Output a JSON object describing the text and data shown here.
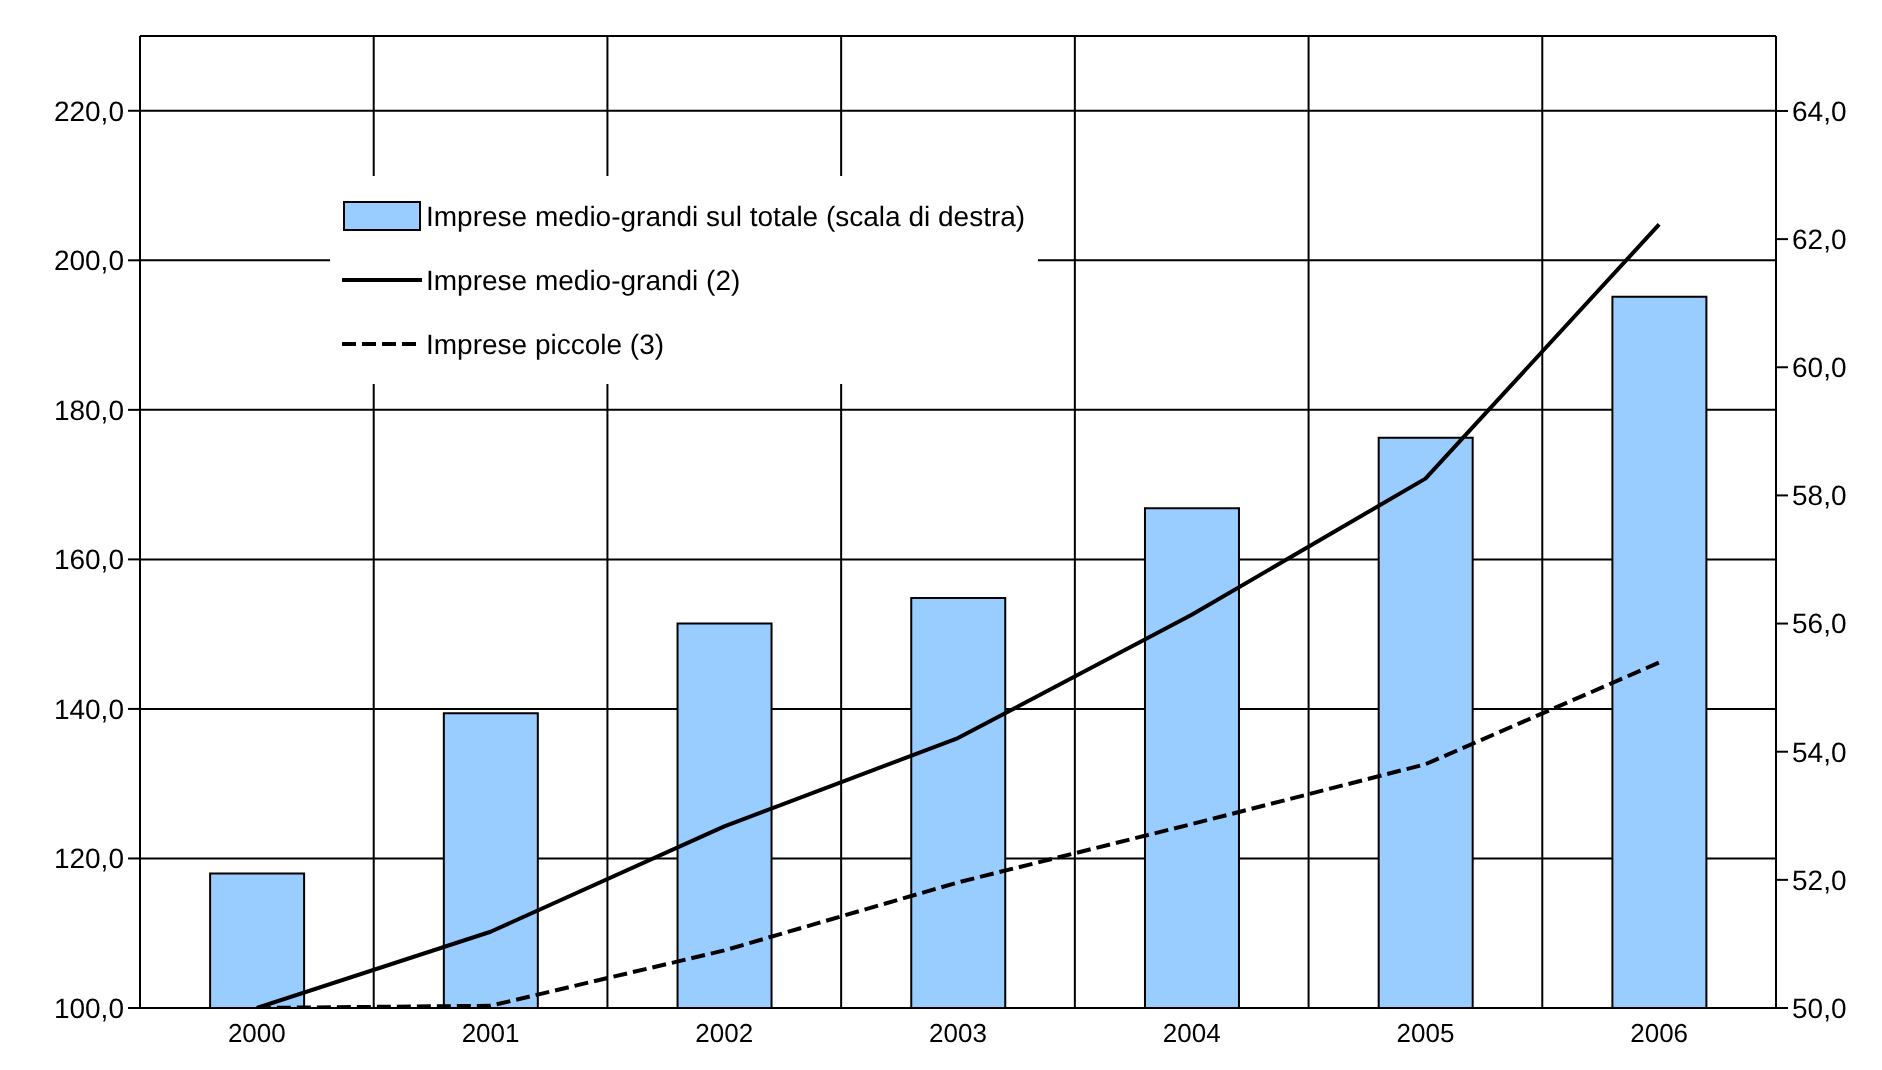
{
  "chart_data": {
    "type": "line",
    "categories": [
      "2000",
      "2001",
      "2002",
      "2003",
      "2004",
      "2005",
      "2006"
    ],
    "series": [
      {
        "name": "Imprese medio-grandi sul totale (scala di destra)",
        "type": "bar",
        "axis": "y2",
        "color": "#99ccff",
        "values": [
          52.1,
          54.6,
          56.0,
          56.4,
          57.8,
          58.9,
          61.1
        ]
      },
      {
        "name": "Imprese medio-grandi (2)",
        "color": "#000000",
        "line_style": "solid",
        "values": [
          100.0,
          110.2,
          124.3,
          136.1,
          152.6,
          170.8,
          204.8
        ]
      },
      {
        "name": "Imprese piccole (3)",
        "color": "#000000",
        "line_style": "dashed",
        "values": [
          100.0,
          100.3,
          107.7,
          116.8,
          124.6,
          132.6,
          146.2
        ]
      }
    ],
    "ylim": [
      100,
      230
    ],
    "yticks": [
      {
        "value": 100,
        "label": "100,0"
      },
      {
        "value": 120,
        "label": "120,0"
      },
      {
        "value": 140,
        "label": "140,0"
      },
      {
        "value": 160,
        "label": "160,0"
      },
      {
        "value": 180,
        "label": "180,0"
      },
      {
        "value": 200,
        "label": "200,0"
      },
      {
        "value": 220,
        "label": "220,0"
      }
    ],
    "y2lim": [
      50,
      65.17
    ],
    "y2ticks": [
      {
        "value": 50,
        "label": "50,0"
      },
      {
        "value": 52,
        "label": "52,0"
      },
      {
        "value": 54,
        "label": "54,0"
      },
      {
        "value": 56,
        "label": "56,0"
      },
      {
        "value": 58,
        "label": "58,0"
      },
      {
        "value": 60,
        "label": "60,0"
      },
      {
        "value": 62,
        "label": "62,0"
      },
      {
        "value": 64,
        "label": "64,0"
      }
    ],
    "grid": true,
    "legend": "top left",
    "marker": "none"
  }
}
